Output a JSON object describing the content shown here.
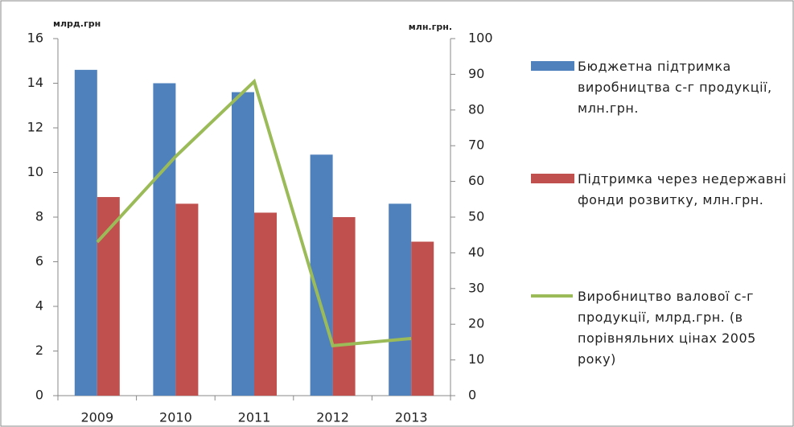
{
  "chart_data": {
    "type": "bar",
    "ylabel": "млрд.грн",
    "y2label": "млн.грн.",
    "categories": [
      "2009",
      "2010",
      "2011",
      "2012",
      "2013"
    ],
    "series": [
      {
        "name": "Бюджетна підтримка виробництва с-г продукції, млн.грн.",
        "color": "#4f81bd",
        "type": "bar",
        "values": [
          14.6,
          14.0,
          13.6,
          10.8,
          8.6
        ]
      },
      {
        "name": "Підтримка через недержавні фонди розвитку, млн.грн.",
        "color": "#c0504d",
        "type": "bar",
        "values": [
          8.9,
          8.6,
          8.2,
          8.0,
          6.9
        ]
      },
      {
        "name": "Виробництво валової с-г продукції, млрд.грн. (в порівняльних цінах 2005 року)",
        "color": "#9bbb59",
        "type": "line",
        "axis": "y2",
        "values": [
          43,
          67,
          88,
          14,
          16
        ]
      }
    ],
    "ylim": [
      0,
      16
    ],
    "yticks": [
      0,
      2,
      4,
      6,
      8,
      10,
      12,
      14,
      16
    ],
    "y2lim": [
      0,
      100
    ],
    "y2ticks": [
      0,
      10,
      20,
      30,
      40,
      50,
      60,
      70,
      80,
      90,
      100
    ],
    "grid": false,
    "legend": "right"
  }
}
